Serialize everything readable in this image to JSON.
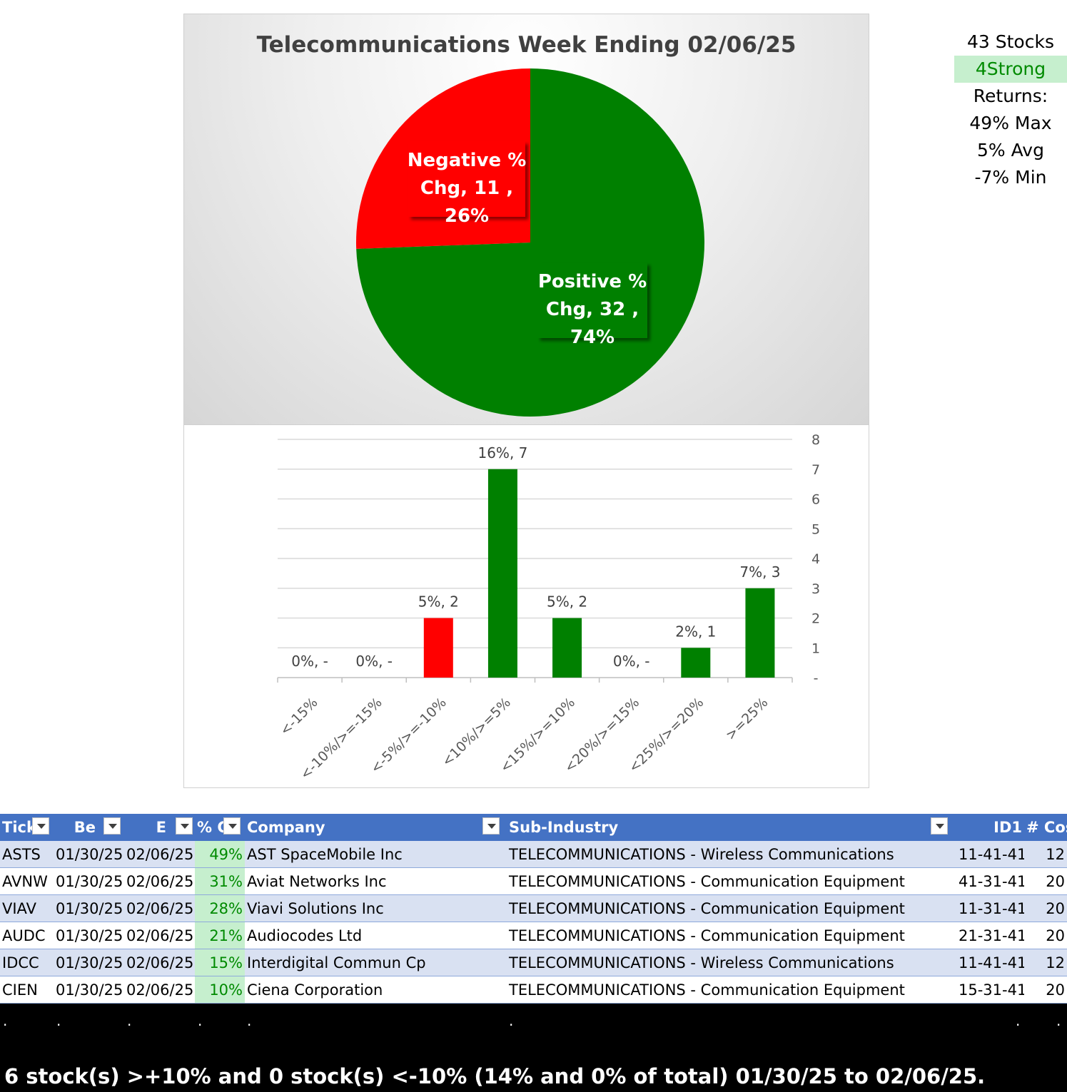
{
  "chart_data": [
    {
      "type": "pie",
      "title": "Telecommunications  Week Ending 02/06/25",
      "slices": [
        {
          "name": "Negative % Chg",
          "value": 11,
          "pct": "26%",
          "color": "#ff0000"
        },
        {
          "name": "Positive % Chg",
          "value": 32,
          "pct": "74%",
          "color": "#008000"
        }
      ]
    },
    {
      "type": "bar",
      "categories": [
        "<-15%",
        "<-10%/>=-15%",
        "<-5%/>=-10%",
        "<10%/>=5%",
        "<15%/>=10%",
        "<20%/>=15%",
        "<25%/>=20%",
        ">=25%"
      ],
      "values": [
        0,
        0,
        2,
        7,
        2,
        0,
        1,
        3
      ],
      "labels": [
        "0%,  -",
        "0%,  -",
        "5%,  2",
        "16%,  7",
        "5%,  2",
        "0%,  -",
        "2%,  1",
        "7%,  3"
      ],
      "colors": [
        "#008000",
        "#008000",
        "#ff0000",
        "#008000",
        "#008000",
        "#008000",
        "#008000",
        "#008000"
      ],
      "yticks": [
        "-",
        "1",
        "2",
        "3",
        "4",
        "5",
        "6",
        "7",
        "8"
      ],
      "ylim": [
        0,
        8
      ],
      "y_axis_side": "right",
      "grid": true
    }
  ],
  "stats": {
    "stocks": "43 Stocks",
    "strong": "4Strong",
    "returns": "Returns:",
    "max": "49% Max",
    "avg": "5% Avg",
    "min": "-7% Min"
  },
  "table": {
    "headers": [
      "Tick",
      "Be",
      "E",
      "% C",
      "Company",
      "Sub-Industry",
      "ID1",
      "# Cos"
    ],
    "rows": [
      [
        "ASTS",
        "01/30/25",
        "02/06/25",
        "49%",
        "AST SpaceMobile Inc",
        "TELECOMMUNICATIONS - Wireless Communications",
        "11-41-41",
        "12"
      ],
      [
        "AVNW",
        "01/30/25",
        "02/06/25",
        "31%",
        "Aviat Networks Inc",
        "TELECOMMUNICATIONS - Communication Equipment",
        "41-31-41",
        "20"
      ],
      [
        "VIAV",
        "01/30/25",
        "02/06/25",
        "28%",
        "Viavi Solutions Inc",
        "TELECOMMUNICATIONS - Communication Equipment",
        "11-31-41",
        "20"
      ],
      [
        "AUDC",
        "01/30/25",
        "02/06/25",
        "21%",
        "Audiocodes Ltd",
        "TELECOMMUNICATIONS - Communication Equipment",
        "21-31-41",
        "20"
      ],
      [
        "IDCC",
        "01/30/25",
        "02/06/25",
        "15%",
        "Interdigital Commun Cp",
        "TELECOMMUNICATIONS - Wireless Communications",
        "11-41-41",
        "12"
      ],
      [
        "CIEN",
        "01/30/25",
        "02/06/25",
        "10%",
        "Ciena Corporation",
        "TELECOMMUNICATIONS - Communication Equipment",
        "15-31-41",
        "20"
      ]
    ]
  },
  "footer": {
    "dot": ".",
    "summary": "6 stock(s) >+10% and 0 stock(s) <-10% (14% and 0% of total) 01/30/25 to 02/06/25."
  }
}
